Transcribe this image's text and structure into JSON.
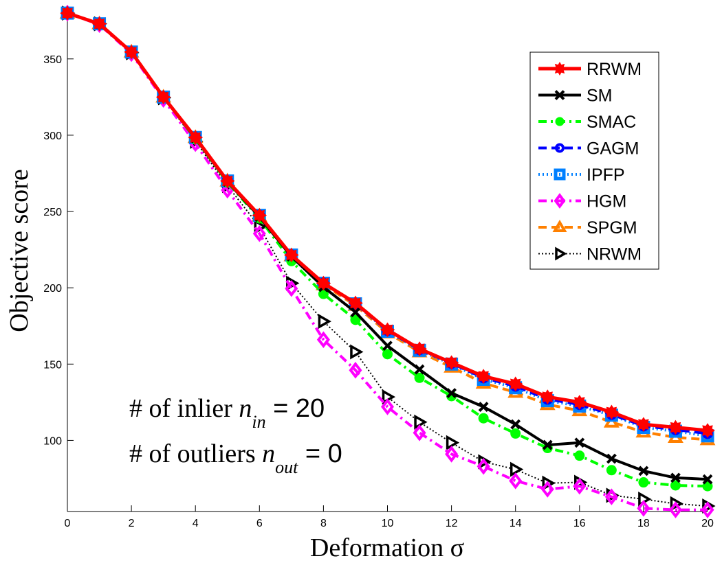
{
  "chart_data": {
    "type": "line",
    "title": "",
    "xlabel": "Deformation σ",
    "ylabel": "Objective score",
    "xlim": [
      0,
      20
    ],
    "ylim": [
      53.4,
      376
    ],
    "xticks": [
      0,
      2,
      4,
      6,
      8,
      10,
      12,
      14,
      16,
      18,
      20
    ],
    "yticks": [
      100,
      150,
      200,
      250,
      300,
      350
    ],
    "grid": false,
    "legend_position": "top-right",
    "x": [
      0,
      1,
      2,
      3,
      4,
      5,
      6,
      7,
      8,
      9,
      10,
      11,
      12,
      13,
      14,
      15,
      16,
      17,
      18,
      19,
      20
    ],
    "series": [
      {
        "name": "RRWM",
        "color": "#ff0000",
        "dash": "solid",
        "marker": "star",
        "width": 5,
        "values": [
          380,
          373,
          354.5,
          325,
          298.5,
          270,
          247.5,
          221.5,
          203,
          190,
          172.5,
          160,
          151,
          142,
          137,
          128.5,
          125,
          118.5,
          110.5,
          108.5,
          106.5
        ]
      },
      {
        "name": "SM",
        "color": "#000000",
        "dash": "solid",
        "marker": "x",
        "width": 4,
        "values": [
          380,
          373,
          354.5,
          325,
          298,
          269.5,
          246.5,
          220.5,
          200.5,
          184,
          162,
          146.5,
          131,
          122,
          110.5,
          97,
          98.5,
          88,
          80,
          75.5,
          74.5
        ]
      },
      {
        "name": "SMAC",
        "color": "#00ff00",
        "dash": "dashdot",
        "marker": "circle",
        "width": 4,
        "values": [
          380,
          373,
          354.5,
          325,
          297.5,
          269,
          245.5,
          217.5,
          196,
          179,
          156.5,
          141,
          129,
          114.5,
          104.5,
          95,
          90,
          80.5,
          72.5,
          70.5,
          70
        ]
      },
      {
        "name": "GAGM",
        "color": "#0000ff",
        "dash": "dashed",
        "marker": "circle-open",
        "width": 4,
        "values": [
          380,
          373,
          354.5,
          325,
          298.5,
          270,
          247.5,
          221.5,
          203,
          189.5,
          172,
          159.5,
          150.5,
          141,
          135.5,
          127,
          123.5,
          117,
          109.5,
          107,
          104.5
        ]
      },
      {
        "name": "IPFP",
        "color": "#0080ff",
        "dash": "dotted",
        "marker": "square",
        "width": 4,
        "values": [
          380,
          373,
          354.5,
          325,
          298.5,
          270,
          247.5,
          221.5,
          203,
          189.5,
          171.5,
          159,
          150,
          140,
          134.5,
          126,
          122.5,
          116.5,
          108.5,
          106,
          103
        ]
      },
      {
        "name": "HGM",
        "color": "#ff00ff",
        "dash": "dashdot",
        "marker": "diamond",
        "width": 4,
        "values": [
          380,
          372.5,
          353.5,
          323.5,
          294.5,
          264,
          235.5,
          199.5,
          166,
          146,
          122,
          105,
          91,
          83,
          73.5,
          68,
          70,
          63,
          55.5,
          54.5,
          54.5
        ]
      },
      {
        "name": "SPGM",
        "color": "#ff8000",
        "dash": "dashed",
        "marker": "triangle-up",
        "width": 4,
        "values": [
          380,
          373,
          354.5,
          325,
          298.5,
          270,
          247,
          221,
          202,
          188.5,
          170.5,
          158,
          148,
          137.5,
          131.5,
          123.5,
          119.5,
          112,
          105.5,
          102,
          100.5
        ]
      },
      {
        "name": "NRWM",
        "color": "#000000",
        "dash": "dotted",
        "marker": "triangle-right",
        "width": 2,
        "values": [
          380,
          373,
          354,
          324.5,
          296,
          267,
          240,
          203,
          178,
          158,
          128.5,
          112,
          98.5,
          86,
          81,
          72,
          72.5,
          64,
          61.5,
          58.5,
          57
        ]
      }
    ],
    "annotations": [
      {
        "prefix": "# of inlier ",
        "var": "n",
        "sub": "in",
        "suffix": " = 20"
      },
      {
        "prefix": "# of outliers ",
        "var": "n",
        "sub": "out",
        "suffix": " = 0"
      }
    ]
  }
}
